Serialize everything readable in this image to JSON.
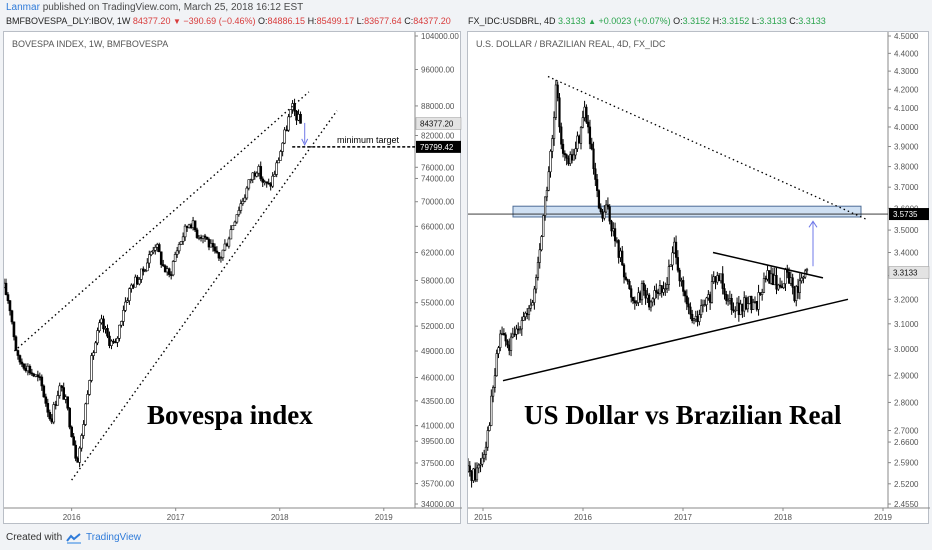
{
  "header": {
    "user": "Lanmar",
    "published": "published on TradingView.com, March 25, 2018 16:12 EST",
    "left_symbol": {
      "name": "BMFBOVESPA_DLY:IBOV, 1W",
      "last": "84377.20",
      "change": "−390.69 (−0.46%)",
      "open": "84886.15",
      "high": "85499.17",
      "low": "83677.64",
      "close": "84377.20"
    },
    "right_symbol": {
      "name": "FX_IDC:USDBRL, 4D",
      "last": "3.3133",
      "change": "+0.0023 (+0.07%)",
      "open": "3.3152",
      "high": "3.3152",
      "low": "3.3133",
      "close": "3.3133"
    }
  },
  "footer": {
    "created": "Created with",
    "brand": "TradingView"
  },
  "colors": {
    "up": "#2ca44e",
    "down": "#d83b3b",
    "brand": "#2f7bd9",
    "candle": "#000000",
    "zone": "#cfe0f3",
    "arrow": "#6f78e8"
  },
  "chart_data": [
    {
      "type": "candlestick",
      "title": "BOVESPA INDEX, 1W, BMFBOVESPA",
      "annotation": "Bovespa index",
      "x_tick_labels": [
        "2016",
        "2017",
        "2018",
        "2019"
      ],
      "y_tick_labels": [
        "104000.00",
        "96000.00",
        "88000.00",
        "82000.00",
        "76000.00",
        "74000.00",
        "70000.00",
        "66000.00",
        "62000.00",
        "58000.00",
        "55000.00",
        "52000.00",
        "49000.00",
        "46000.00",
        "43500.00",
        "41000.00",
        "39500.00",
        "37500.00",
        "35700.00",
        "34000.00"
      ],
      "ylim": [
        34000,
        104000
      ],
      "xlim": [
        2015.35,
        2019.3
      ],
      "last_price": "84377.20",
      "target_price": "79799.42",
      "target_label": "minimum target",
      "channel_lines": [
        {
          "from": [
            2015.45,
            49000
          ],
          "to": [
            2018.28,
            91000
          ]
        },
        {
          "from": [
            2016.0,
            36000
          ],
          "to": [
            2018.55,
            87000
          ]
        }
      ],
      "price_path": [
        [
          2015.35,
          57000
        ],
        [
          2015.4,
          55000
        ],
        [
          2015.48,
          48000
        ],
        [
          2015.55,
          47500
        ],
        [
          2015.62,
          46500
        ],
        [
          2015.7,
          45500
        ],
        [
          2015.8,
          41500
        ],
        [
          2015.88,
          45000
        ],
        [
          2015.93,
          44000
        ],
        [
          2016.0,
          40500
        ],
        [
          2016.05,
          37700
        ],
        [
          2016.1,
          40000
        ],
        [
          2016.15,
          44500
        ],
        [
          2016.2,
          48500
        ],
        [
          2016.28,
          52500
        ],
        [
          2016.35,
          50500
        ],
        [
          2016.42,
          49500
        ],
        [
          2016.5,
          54500
        ],
        [
          2016.58,
          57500
        ],
        [
          2016.66,
          58500
        ],
        [
          2016.75,
          61500
        ],
        [
          2016.8,
          63500
        ],
        [
          2016.88,
          60000
        ],
        [
          2016.94,
          58500
        ],
        [
          2017.0,
          62000
        ],
        [
          2017.08,
          65000
        ],
        [
          2017.14,
          67000
        ],
        [
          2017.2,
          65000
        ],
        [
          2017.28,
          64500
        ],
        [
          2017.36,
          62000
        ],
        [
          2017.42,
          61000
        ],
        [
          2017.5,
          64000
        ],
        [
          2017.58,
          68000
        ],
        [
          2017.66,
          71000
        ],
        [
          2017.72,
          74000
        ],
        [
          2017.78,
          76000
        ],
        [
          2017.85,
          73000
        ],
        [
          2017.9,
          72500
        ],
        [
          2017.96,
          75500
        ],
        [
          2018.0,
          78500
        ],
        [
          2018.04,
          81500
        ],
        [
          2018.08,
          85000
        ],
        [
          2018.12,
          87500
        ],
        [
          2018.16,
          86000
        ],
        [
          2018.2,
          84377
        ]
      ]
    },
    {
      "type": "candlestick",
      "title": "U.S. DOLLAR / BRAZILIAN REAL, 4D, FX_IDC",
      "annotation": "US Dollar vs Brazilian Real",
      "x_tick_labels": [
        "2015",
        "2016",
        "2017",
        "2018",
        "2019"
      ],
      "y_tick_labels": [
        "4.5000",
        "4.4000",
        "4.3000",
        "4.2000",
        "4.1000",
        "4.0000",
        "3.9000",
        "3.8000",
        "3.7000",
        "3.6000",
        "3.5000",
        "3.4000",
        "3.3000",
        "3.2000",
        "3.1000",
        "3.0000",
        "2.9000",
        "2.8000",
        "2.7000",
        "2.6600",
        "2.5900",
        "2.5200",
        "2.4550"
      ],
      "ylim": [
        2.455,
        4.5
      ],
      "xlim": [
        2014.85,
        2019.05
      ],
      "last_price": "3.3133",
      "level_price": "3.5735",
      "resistance_zone": [
        3.56,
        3.61
      ],
      "trend_lines": [
        {
          "style": "dotted",
          "from": [
            2015.65,
            4.27
          ],
          "to": [
            2018.83,
            3.55
          ]
        },
        {
          "style": "solid",
          "from": [
            2015.2,
            2.88
          ],
          "to": [
            2018.65,
            3.2
          ]
        },
        {
          "style": "solid",
          "from": [
            2017.3,
            3.4
          ],
          "to": [
            2018.4,
            3.29
          ]
        }
      ],
      "price_path": [
        [
          2014.85,
          2.56
        ],
        [
          2014.92,
          2.55
        ],
        [
          2015.0,
          2.62
        ],
        [
          2015.05,
          2.7
        ],
        [
          2015.1,
          2.85
        ],
        [
          2015.18,
          3.08
        ],
        [
          2015.25,
          3.0
        ],
        [
          2015.32,
          3.05
        ],
        [
          2015.4,
          3.15
        ],
        [
          2015.45,
          3.12
        ],
        [
          2015.5,
          3.2
        ],
        [
          2015.55,
          3.35
        ],
        [
          2015.6,
          3.55
        ],
        [
          2015.65,
          3.75
        ],
        [
          2015.7,
          3.95
        ],
        [
          2015.73,
          4.2
        ],
        [
          2015.78,
          3.95
        ],
        [
          2015.84,
          3.8
        ],
        [
          2015.9,
          3.85
        ],
        [
          2015.96,
          3.95
        ],
        [
          2016.02,
          4.1
        ],
        [
          2016.06,
          3.95
        ],
        [
          2016.1,
          3.8
        ],
        [
          2016.14,
          3.65
        ],
        [
          2016.18,
          3.55
        ],
        [
          2016.25,
          3.6
        ],
        [
          2016.32,
          3.45
        ],
        [
          2016.4,
          3.35
        ],
        [
          2016.45,
          3.25
        ],
        [
          2016.5,
          3.2
        ],
        [
          2016.55,
          3.22
        ],
        [
          2016.6,
          3.25
        ],
        [
          2016.66,
          3.18
        ],
        [
          2016.72,
          3.25
        ],
        [
          2016.78,
          3.22
        ],
        [
          2016.84,
          3.28
        ],
        [
          2016.88,
          3.35
        ],
        [
          2016.92,
          3.45
        ],
        [
          2016.98,
          3.25
        ],
        [
          2017.05,
          3.15
        ],
        [
          2017.12,
          3.1
        ],
        [
          2017.18,
          3.15
        ],
        [
          2017.26,
          3.2
        ],
        [
          2017.32,
          3.28
        ],
        [
          2017.38,
          3.3
        ],
        [
          2017.45,
          3.2
        ],
        [
          2017.52,
          3.18
        ],
        [
          2017.58,
          3.15
        ],
        [
          2017.65,
          3.2
        ],
        [
          2017.72,
          3.17
        ],
        [
          2017.78,
          3.24
        ],
        [
          2017.85,
          3.3
        ],
        [
          2017.9,
          3.28
        ],
        [
          2017.96,
          3.25
        ],
        [
          2018.02,
          3.3
        ],
        [
          2018.08,
          3.28
        ],
        [
          2018.12,
          3.22
        ],
        [
          2018.16,
          3.25
        ],
        [
          2018.2,
          3.28
        ],
        [
          2018.24,
          3.3133
        ]
      ]
    }
  ]
}
